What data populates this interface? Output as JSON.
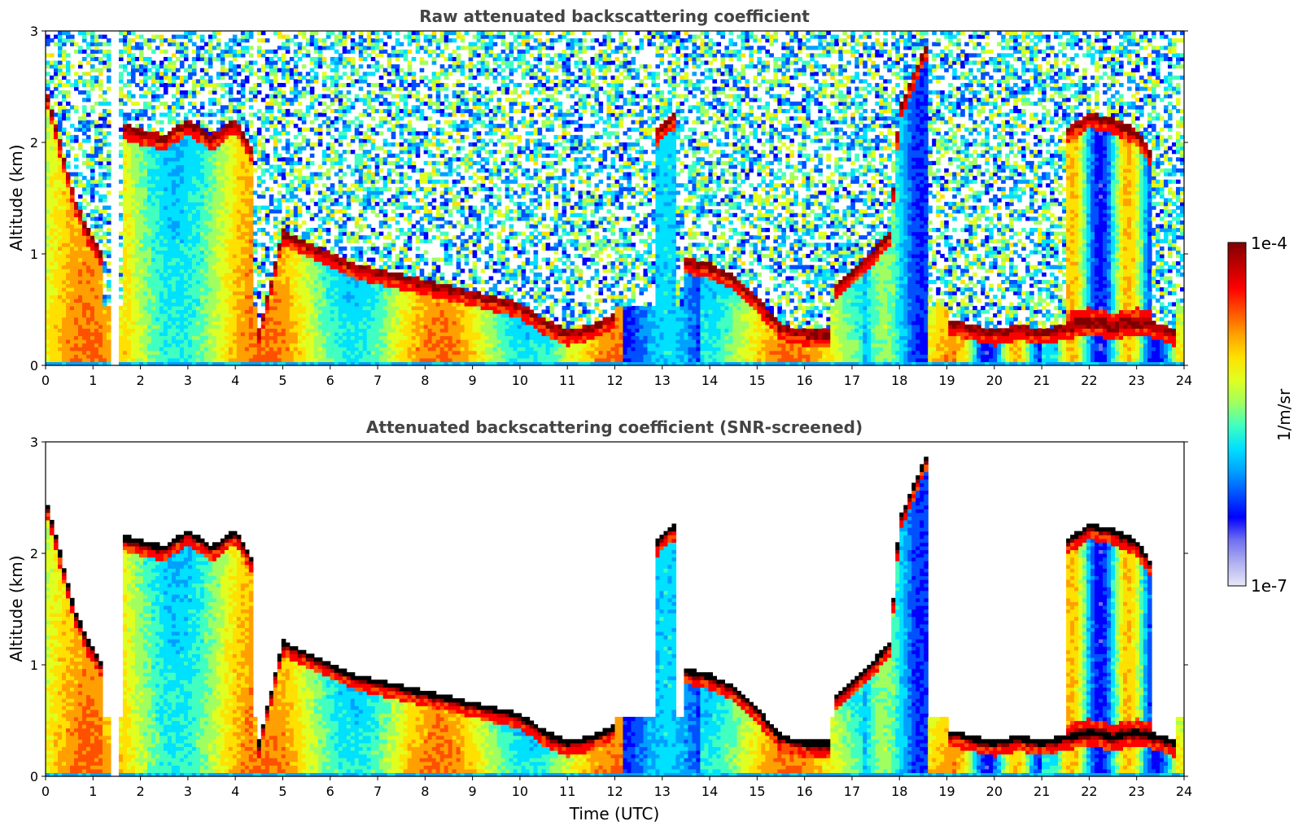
{
  "chart_data": [
    {
      "type": "heatmap",
      "title": "Raw attenuated backscattering coefficient",
      "xlabel": "",
      "ylabel": "Altitude (km)",
      "xlim": [
        0,
        24
      ],
      "ylim": [
        0,
        3
      ],
      "xticks": [
        "0",
        "1",
        "2",
        "3",
        "4",
        "5",
        "6",
        "7",
        "8",
        "9",
        "10",
        "11",
        "12",
        "13",
        "14",
        "15",
        "16",
        "17",
        "18",
        "19",
        "20",
        "21",
        "22",
        "23",
        "24"
      ],
      "yticks": [
        "0",
        "1",
        "2",
        "3"
      ],
      "noise_above_cloud": true,
      "noise_below_start_of_plot": true,
      "cloud_layers": [
        {
          "t": [
            0.0,
            0.3,
            0.6,
            0.9,
            1.2
          ],
          "z": [
            2.5,
            2.0,
            1.5,
            1.2,
            1.0
          ]
        },
        {
          "t": [
            1.6,
            2.0,
            2.5,
            3.0,
            3.5,
            4.0,
            4.4
          ],
          "z": [
            2.15,
            2.1,
            2.05,
            2.2,
            2.05,
            2.2,
            1.9
          ]
        },
        {
          "t": [
            4.5,
            5.0,
            5.5,
            6.0,
            6.5,
            7.0,
            7.5,
            8.0,
            8.5,
            9.0,
            9.5,
            10.0,
            10.5,
            11.0,
            11.5,
            12.0
          ],
          "z": [
            0.3,
            1.2,
            1.1,
            1.0,
            0.9,
            0.85,
            0.8,
            0.75,
            0.7,
            0.65,
            0.6,
            0.55,
            0.4,
            0.3,
            0.35,
            0.45
          ]
        },
        {
          "t": [
            12.9,
            13.1,
            13.3
          ],
          "z": [
            2.1,
            2.2,
            2.25
          ]
        },
        {
          "t": [
            13.5,
            14.0,
            14.5,
            15.0,
            15.5,
            16.0,
            16.5
          ],
          "z": [
            0.95,
            0.9,
            0.8,
            0.6,
            0.35,
            0.3,
            0.3
          ]
        },
        {
          "t": [
            16.6,
            17.0,
            17.5,
            17.8,
            18.0,
            18.3,
            18.6
          ],
          "z": [
            0.7,
            0.85,
            1.05,
            1.2,
            2.3,
            2.6,
            2.9
          ]
        },
        {
          "t": [
            19.0,
            19.5,
            20.0,
            20.5,
            21.0,
            21.5,
            22.0,
            22.5,
            23.0,
            23.5,
            23.8
          ],
          "z": [
            0.4,
            0.35,
            0.3,
            0.35,
            0.3,
            0.35,
            0.4,
            0.35,
            0.4,
            0.35,
            0.3
          ]
        },
        {
          "t": [
            21.5,
            22.0,
            22.5,
            23.0,
            23.3
          ],
          "z": [
            2.1,
            2.25,
            2.2,
            2.1,
            1.9
          ]
        }
      ],
      "gap_times": [
        [
          1.35,
          1.5
        ]
      ]
    },
    {
      "type": "heatmap",
      "title": "Attenuated backscattering coefficient (SNR-screened)",
      "xlabel": "Time (UTC)",
      "ylabel": "Altitude (km)",
      "xlim": [
        0,
        24
      ],
      "ylim": [
        0,
        3
      ],
      "xticks": [
        "0",
        "1",
        "2",
        "3",
        "4",
        "5",
        "6",
        "7",
        "8",
        "9",
        "10",
        "11",
        "12",
        "13",
        "14",
        "15",
        "16",
        "17",
        "18",
        "19",
        "20",
        "21",
        "22",
        "23",
        "24"
      ],
      "yticks": [
        "0",
        "1",
        "2",
        "3"
      ],
      "noise_above_cloud": false,
      "saturated_color": "#000000",
      "cloud_layers": [
        {
          "t": [
            0.0,
            0.3,
            0.6,
            0.9,
            1.2
          ],
          "z": [
            2.5,
            2.0,
            1.5,
            1.2,
            1.0
          ]
        },
        {
          "t": [
            1.6,
            2.0,
            2.5,
            3.0,
            3.5,
            4.0,
            4.4
          ],
          "z": [
            2.15,
            2.1,
            2.05,
            2.2,
            2.05,
            2.2,
            1.9
          ]
        },
        {
          "t": [
            4.5,
            5.0,
            5.5,
            6.0,
            6.5,
            7.0,
            7.5,
            8.0,
            8.5,
            9.0,
            9.5,
            10.0,
            10.5,
            11.0,
            11.5,
            12.0
          ],
          "z": [
            0.3,
            1.2,
            1.1,
            1.0,
            0.9,
            0.85,
            0.8,
            0.75,
            0.7,
            0.65,
            0.6,
            0.55,
            0.4,
            0.3,
            0.35,
            0.45
          ]
        },
        {
          "t": [
            12.9,
            13.1,
            13.3
          ],
          "z": [
            2.1,
            2.2,
            2.25
          ]
        },
        {
          "t": [
            13.5,
            14.0,
            14.5,
            15.0,
            15.5,
            16.0,
            16.5
          ],
          "z": [
            0.95,
            0.9,
            0.8,
            0.6,
            0.35,
            0.3,
            0.3
          ]
        },
        {
          "t": [
            16.6,
            17.0,
            17.5,
            17.8,
            18.0,
            18.3,
            18.6
          ],
          "z": [
            0.7,
            0.85,
            1.05,
            1.2,
            2.3,
            2.6,
            2.9
          ]
        },
        {
          "t": [
            19.0,
            19.5,
            20.0,
            20.5,
            21.0,
            21.5,
            22.0,
            22.5,
            23.0,
            23.5,
            23.8
          ],
          "z": [
            0.4,
            0.35,
            0.3,
            0.35,
            0.3,
            0.35,
            0.4,
            0.35,
            0.4,
            0.35,
            0.3
          ]
        },
        {
          "t": [
            21.5,
            22.0,
            22.5,
            23.0,
            23.3
          ],
          "z": [
            2.1,
            2.25,
            2.2,
            2.1,
            1.9
          ]
        }
      ],
      "gap_times": [
        [
          1.35,
          1.5
        ]
      ]
    }
  ],
  "colorbar": {
    "label": "1/m/sr",
    "max_label": "1e-4",
    "min_label": "1e-7",
    "scale": "log",
    "range": [
      1e-07,
      0.0001
    ],
    "colormap": "jet",
    "colors": [
      "#e8e8f8",
      "#b0b0f0",
      "#7070f0",
      "#0000ff",
      "#0050ff",
      "#00a0ff",
      "#00e0ff",
      "#40ffc0",
      "#a0ff60",
      "#e0ff20",
      "#ffe000",
      "#ffa000",
      "#ff5000",
      "#ff0000",
      "#c00000",
      "#800000"
    ]
  }
}
